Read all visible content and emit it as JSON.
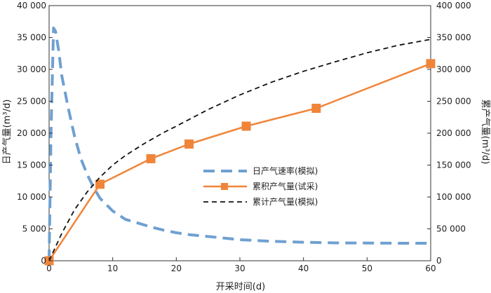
{
  "chart_data": {
    "type": "line",
    "xlabel": "开采时间(d)",
    "ylabel_left": "日产气量(m³/d)",
    "ylabel_right": "累产气量(m³/d)",
    "xlim": [
      0,
      60
    ],
    "ylim_left": [
      0,
      40000
    ],
    "ylim_right": [
      0,
      400000
    ],
    "x_ticks": [
      0,
      10,
      20,
      30,
      40,
      50,
      60
    ],
    "y_left_ticks": [
      0,
      5000,
      10000,
      15000,
      20000,
      25000,
      30000,
      35000,
      40000
    ],
    "y_left_tick_labels": [
      "0",
      "5 000",
      "10 000",
      "15 000",
      "20 000",
      "25 000",
      "30 000",
      "35 000",
      "40 000"
    ],
    "y_right_ticks": [
      0,
      50000,
      100000,
      150000,
      200000,
      250000,
      300000,
      350000,
      400000
    ],
    "y_right_tick_labels": [
      "0",
      "50 000",
      "100 000",
      "150 000",
      "200 000",
      "250 000",
      "300 000",
      "350 000",
      "400 000"
    ],
    "grid": false,
    "legend_position": "center-right",
    "series": [
      {
        "name": "日产气速率(模拟)",
        "axis": "left",
        "style": "long-dash",
        "color": "#6fa0d0",
        "x": [
          0,
          0.3,
          0.7,
          1,
          1.5,
          2,
          3,
          4,
          5,
          6,
          7,
          8,
          10,
          12,
          14,
          16,
          18,
          20,
          22,
          25,
          28,
          30,
          35,
          40,
          45,
          50,
          55,
          60
        ],
        "y": [
          0,
          20000,
          36500,
          36000,
          33000,
          29000,
          24000,
          19500,
          16000,
          13500,
          11500,
          9800,
          7800,
          6500,
          5900,
          5300,
          4800,
          4400,
          4100,
          3800,
          3500,
          3300,
          3050,
          2900,
          2800,
          2780,
          2750,
          2750
        ]
      },
      {
        "name": "累积产气量(试采)",
        "axis": "right",
        "style": "solid-square",
        "color": "#f0853a",
        "x": [
          0,
          8,
          16,
          22,
          31,
          42,
          60
        ],
        "y": [
          0,
          120000,
          160000,
          183000,
          211000,
          239000,
          309000
        ]
      },
      {
        "name": "累计产气量(模拟)",
        "axis": "right",
        "style": "short-dash",
        "color": "#111111",
        "x": [
          0,
          2,
          4,
          6,
          8,
          10,
          12,
          15,
          18,
          20,
          25,
          30,
          35,
          40,
          45,
          50,
          55,
          60
        ],
        "y": [
          0,
          43000,
          80000,
          108000,
          131000,
          150000,
          165000,
          184000,
          201000,
          211000,
          237000,
          260000,
          280000,
          297000,
          312000,
          326000,
          338000,
          347000
        ]
      }
    ]
  }
}
